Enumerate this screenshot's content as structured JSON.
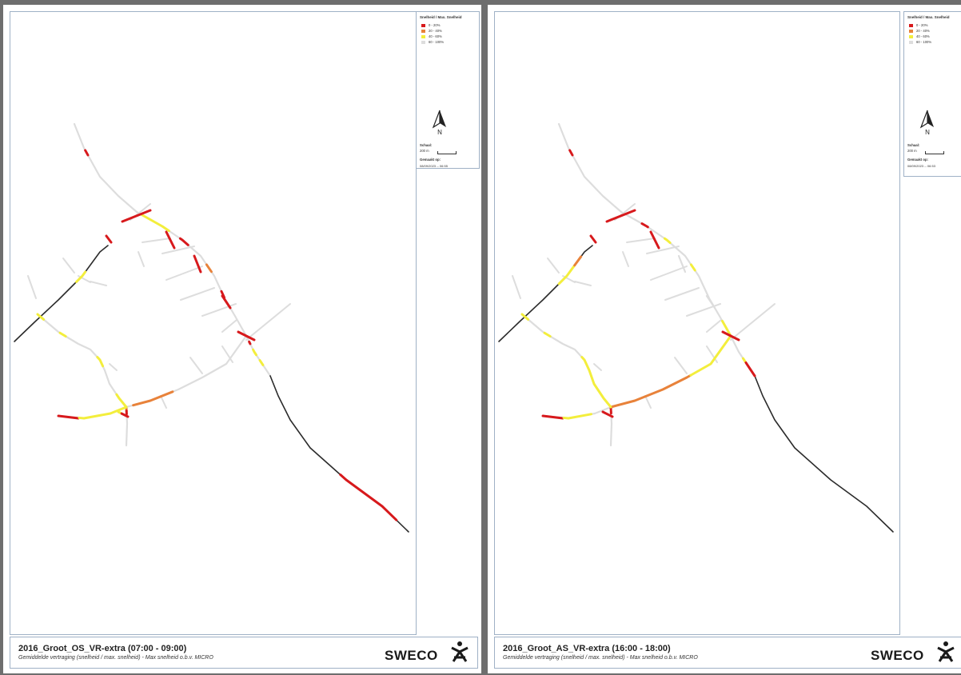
{
  "colors": {
    "red": "#d7191c",
    "orange": "#e8823a",
    "yellow": "#f3ee3c",
    "light": "#dddddd",
    "highway": "#2b2b2b"
  },
  "legend": {
    "title": "Snelheid / Max. Snelheid",
    "items": [
      {
        "label": "0 - 20%",
        "color": "#d7191c"
      },
      {
        "label": "20 - 40%",
        "color": "#e8823a"
      },
      {
        "label": "40 - 60%",
        "color": "#f3ee3c"
      },
      {
        "label": "60 - 100%",
        "color": "#dddddd"
      }
    ],
    "north_label": "N",
    "north_icon": "north-arrow-icon",
    "scale_label": "Schaal:",
    "scale_value": "200 m",
    "made_label": "Gemaakt op:"
  },
  "maps": [
    {
      "title": "2016_Groot_OS_VR-extra (07:00 - 09:00)",
      "subtitle": "Gemiddelde vertraging (snelheid / max. snelheid) - Max snelheid o.b.v. MICRO",
      "made_on": "08/09/2023 -- 06:55",
      "logo_text": "SWECO",
      "logo_icon": "sweco-figure-icon",
      "segments": [
        {
          "road": "n1",
          "from": 0.26,
          "to": 0.31,
          "level": "red"
        },
        {
          "road": "e1",
          "from": 0.58,
          "to": 0.92,
          "level": "red"
        },
        {
          "road": "n2",
          "from": 0.03,
          "to": 0.22,
          "level": "yellow"
        },
        {
          "road": "n2",
          "from": 0.3,
          "to": 0.36,
          "level": "red"
        },
        {
          "road": "n2",
          "from": 0.52,
          "to": 0.57,
          "level": "orange"
        },
        {
          "road": "n2",
          "from": 0.7,
          "to": 0.74,
          "level": "red"
        },
        {
          "road": "n3",
          "from": 0.14,
          "to": 0.19,
          "level": "red"
        },
        {
          "road": "n3",
          "from": 0.33,
          "to": 0.46,
          "level": "yellow"
        },
        {
          "road": "n3",
          "from": 0.6,
          "to": 0.72,
          "level": "yellow"
        },
        {
          "road": "ms",
          "from": 0.05,
          "to": 0.34,
          "level": "orange"
        },
        {
          "road": "se",
          "from": 0.0,
          "to": 0.1,
          "level": "orange"
        },
        {
          "road": "se",
          "from": 0.1,
          "to": 0.18,
          "level": "red"
        },
        {
          "road": "w1",
          "from": 0.0,
          "to": 0.06,
          "level": "yellow"
        },
        {
          "road": "w1",
          "from": 0.22,
          "to": 0.27,
          "level": "yellow"
        },
        {
          "road": "w1",
          "from": 0.56,
          "to": 0.64,
          "level": "yellow"
        },
        {
          "road": "w1",
          "from": 0.88,
          "to": 1.0,
          "level": "yellow"
        },
        {
          "road": "hw",
          "from": 0.64,
          "to": 0.74,
          "level": "yellow"
        },
        {
          "road": "bl",
          "from": 0.0,
          "to": 1.0,
          "level": "red"
        },
        {
          "road": "bd",
          "from": 0.0,
          "to": 0.35,
          "level": "yellow"
        },
        {
          "road": "bd",
          "from": 0.35,
          "to": 1.0,
          "level": "red"
        },
        {
          "road": "t1",
          "from": 0.0,
          "to": 0.7,
          "level": "yellow"
        },
        {
          "road": "x1",
          "from": 0.0,
          "to": 1.0,
          "level": "red"
        },
        {
          "road": "x2",
          "from": 0.0,
          "to": 1.0,
          "level": "red"
        },
        {
          "road": "x3",
          "from": 0.0,
          "to": 1.0,
          "level": "red"
        },
        {
          "road": "x4",
          "from": 0.0,
          "to": 1.0,
          "level": "red"
        },
        {
          "road": "x5",
          "from": 0.0,
          "to": 1.0,
          "level": "red"
        },
        {
          "road": "x6",
          "from": 0.0,
          "to": 1.0,
          "level": "red"
        }
      ]
    },
    {
      "title": "2016_Groot_AS_VR-extra (16:00 - 18:00)",
      "subtitle": "Gemiddelde vertraging (snelheid / max. snelheid) - Max snelheid o.b.v. MICRO",
      "made_on": "08/09/2023 -- 06:53",
      "logo_text": "SWECO",
      "logo_icon": "sweco-figure-icon",
      "segments": [
        {
          "road": "n1",
          "from": 0.26,
          "to": 0.31,
          "level": "red"
        },
        {
          "road": "n2",
          "from": 0.14,
          "to": 0.18,
          "level": "red"
        },
        {
          "road": "n2",
          "from": 0.3,
          "to": 0.34,
          "level": "yellow"
        },
        {
          "road": "n2",
          "from": 0.52,
          "to": 0.56,
          "level": "yellow"
        },
        {
          "road": "n2",
          "from": 0.9,
          "to": 1.0,
          "level": "yellow"
        },
        {
          "road": "n3",
          "from": 0.55,
          "to": 0.64,
          "level": "yellow"
        },
        {
          "road": "n3",
          "from": 0.66,
          "to": 1.0,
          "level": "red"
        },
        {
          "road": "ms",
          "from": 0.0,
          "to": 0.6,
          "level": "orange"
        },
        {
          "road": "ms",
          "from": 0.6,
          "to": 1.0,
          "level": "yellow"
        },
        {
          "road": "se",
          "from": 0.0,
          "to": 0.06,
          "level": "red"
        },
        {
          "road": "se",
          "from": 0.1,
          "to": 0.16,
          "level": "red"
        },
        {
          "road": "w1",
          "from": 0.0,
          "to": 0.06,
          "level": "yellow"
        },
        {
          "road": "w1",
          "from": 0.22,
          "to": 0.27,
          "level": "yellow"
        },
        {
          "road": "w1",
          "from": 0.56,
          "to": 1.0,
          "level": "yellow"
        },
        {
          "road": "hw",
          "from": 0.62,
          "to": 0.8,
          "level": "yellow"
        },
        {
          "road": "hw",
          "from": 0.8,
          "to": 0.88,
          "level": "orange"
        },
        {
          "road": "bl",
          "from": 0.0,
          "to": 1.0,
          "level": "red"
        },
        {
          "road": "bd",
          "from": 0.0,
          "to": 1.0,
          "level": "red"
        },
        {
          "road": "t1",
          "from": 0.3,
          "to": 0.7,
          "level": "yellow"
        },
        {
          "road": "x1",
          "from": 0.0,
          "to": 1.0,
          "level": "red"
        },
        {
          "road": "x2",
          "from": 0.0,
          "to": 1.0,
          "level": "red"
        },
        {
          "road": "x3",
          "from": 0.0,
          "to": 1.0,
          "level": "red"
        },
        {
          "road": "x6",
          "from": 0.0,
          "to": 1.0,
          "level": "red"
        }
      ]
    }
  ]
}
